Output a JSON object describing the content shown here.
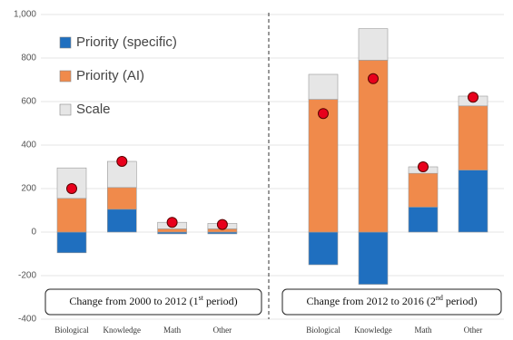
{
  "chart_data": {
    "type": "bar",
    "stacked": true,
    "categories": [
      "Biological",
      "Knowledge",
      "Math",
      "Other",
      "Biological",
      "Knowledge",
      "Math",
      "Other"
    ],
    "series": [
      {
        "name": "Priority (specific)",
        "color": "#1f6fbf",
        "values": [
          -95,
          105,
          -8,
          -8,
          -150,
          -240,
          115,
          285
        ]
      },
      {
        "name": "Priority (AI)",
        "color": "#f08a4b",
        "values": [
          155,
          100,
          15,
          15,
          610,
          790,
          155,
          295
        ]
      },
      {
        "name": "Scale",
        "color": "#e6e6e6",
        "values": [
          140,
          120,
          30,
          25,
          115,
          145,
          30,
          45
        ]
      }
    ],
    "markers": {
      "color": "#e8001c",
      "values": [
        200,
        325,
        45,
        35,
        545,
        705,
        300,
        620
      ]
    },
    "groups": [
      {
        "label": "Change from 2000 to 2012 (1",
        "label_sup": "st",
        "label_end": " period)"
      },
      {
        "label": "Change from 2012 to 2016 (2",
        "label_sup": "nd",
        "label_end": " period)"
      }
    ],
    "ylim": [
      -400,
      1000
    ],
    "yticks": [
      -400,
      -200,
      0,
      200,
      400,
      600,
      800,
      {
        "value": 1000,
        "label": "1,000"
      }
    ],
    "grid": true,
    "legend": "top-left"
  }
}
